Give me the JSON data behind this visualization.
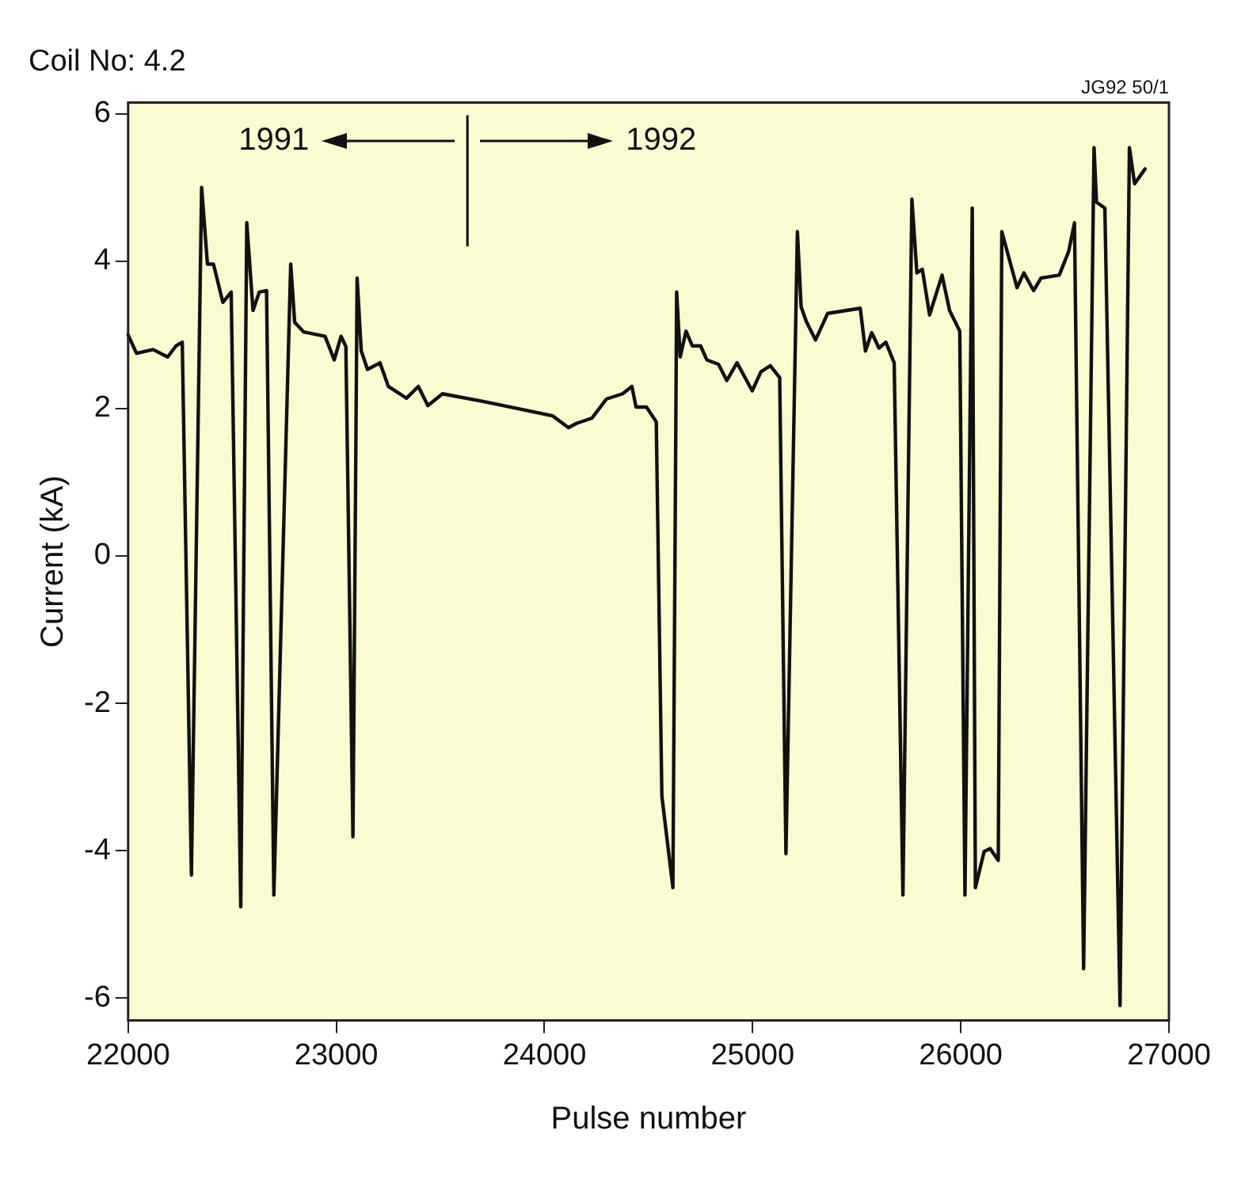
{
  "chart_data": {
    "type": "line",
    "title": "Coil No: 4.2",
    "xlabel": "Pulse number",
    "ylabel": "Current (kA)",
    "annotations": [
      "1991",
      "1992",
      "JG92 50/1"
    ],
    "ref_lines": [
      {
        "axis": "x",
        "value": 23630,
        "color": "#000000"
      }
    ],
    "xlim": [
      22000,
      27000
    ],
    "xticks": [
      22000,
      23000,
      24000,
      25000,
      26000,
      27000
    ],
    "ylim": [
      -6.3,
      6.15
    ],
    "yticks": [
      -6,
      -4,
      -2,
      0,
      2,
      4,
      6
    ],
    "grid": false,
    "legend": false,
    "marker": "none",
    "line_style": "solid",
    "series": [
      {
        "color": "#111111",
        "x": [
          22000,
          22040,
          22120,
          22190,
          22230,
          22260,
          22304,
          22353,
          22381,
          22410,
          22455,
          22495,
          22541,
          22570,
          22600,
          22630,
          22665,
          22700,
          22781,
          22800,
          22843,
          22946,
          22990,
          23023,
          23046,
          23080,
          23100,
          23120,
          23150,
          23210,
          23250,
          23337,
          23394,
          23440,
          23510,
          23700,
          24040,
          24115,
          24155,
          24228,
          24298,
          24375,
          24420,
          24440,
          24490,
          24537,
          24564,
          24617,
          24635,
          24652,
          24680,
          24710,
          24750,
          24780,
          24836,
          24876,
          24925,
          24998,
          25040,
          25085,
          25130,
          25160,
          25215,
          25233,
          25258,
          25302,
          25360,
          25517,
          25542,
          25572,
          25607,
          25640,
          25680,
          25722,
          25765,
          25789,
          25815,
          25850,
          25910,
          25946,
          25995,
          26020,
          26055,
          26070,
          26112,
          26141,
          26180,
          26197,
          26270,
          26303,
          26350,
          26385,
          26473,
          26518,
          26546,
          26590,
          26640,
          26652,
          26692,
          26765,
          26810,
          26835,
          26885
        ],
        "values": [
          3.0,
          2.75,
          2.8,
          2.7,
          2.85,
          2.9,
          -4.33,
          5.0,
          3.96,
          3.96,
          3.44,
          3.58,
          -4.76,
          4.52,
          3.33,
          3.58,
          3.6,
          -4.6,
          3.96,
          3.17,
          3.04,
          2.98,
          2.66,
          2.98,
          2.84,
          -3.81,
          3.77,
          2.78,
          2.53,
          2.62,
          2.3,
          2.14,
          2.3,
          2.04,
          2.2,
          2.1,
          1.9,
          1.74,
          1.8,
          1.87,
          2.13,
          2.2,
          2.3,
          2.02,
          2.02,
          1.82,
          -3.26,
          -4.5,
          3.58,
          2.7,
          3.05,
          2.85,
          2.85,
          2.66,
          2.6,
          2.38,
          2.62,
          2.24,
          2.5,
          2.58,
          2.42,
          -4.04,
          4.4,
          3.38,
          3.18,
          2.93,
          3.29,
          3.36,
          2.78,
          3.03,
          2.82,
          2.9,
          2.62,
          -4.6,
          4.84,
          3.84,
          3.89,
          3.27,
          3.81,
          3.33,
          3.05,
          -4.6,
          4.72,
          -4.5,
          -4.01,
          -3.97,
          -4.13,
          4.4,
          3.64,
          3.84,
          3.6,
          3.77,
          3.81,
          4.13,
          4.52,
          -5.6,
          5.54,
          4.8,
          4.72,
          -6.1,
          5.54,
          5.05,
          5.25
        ]
      }
    ]
  }
}
